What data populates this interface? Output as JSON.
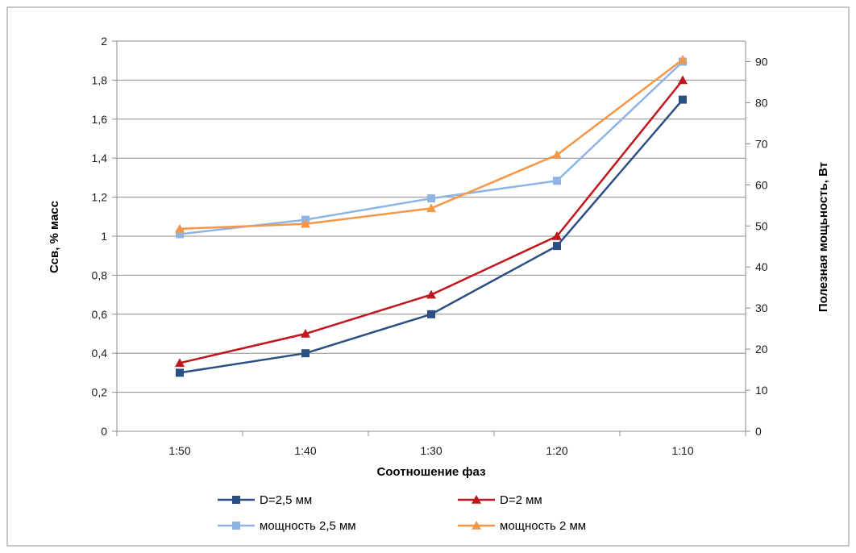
{
  "chart_data": {
    "type": "line",
    "title": "",
    "xlabel": "Соотношение фаз",
    "ylabel_left": "Ссв, % масс",
    "ylabel_right": "Полезная мощьность, Вт",
    "categories": [
      "1:50",
      "1:40",
      "1:30",
      "1:20",
      "1:10"
    ],
    "y_left": {
      "min": 0,
      "max": 2,
      "step": 0.2,
      "tick_labels": [
        "0",
        "0,2",
        "0,4",
        "0,6",
        "0,8",
        "1",
        "1,2",
        "1,4",
        "1,6",
        "1,8",
        "2"
      ]
    },
    "y_right": {
      "min": 0,
      "max": 95,
      "step": 10,
      "tick_labels": [
        "0",
        "10",
        "20",
        "30",
        "40",
        "50",
        "60",
        "70",
        "80",
        "90"
      ]
    },
    "grid": true,
    "legend_position": "bottom",
    "series": [
      {
        "name": "D=2,5 мм",
        "axis": "left",
        "marker": "square",
        "color": "#2b4f82",
        "values": [
          0.3,
          0.4,
          0.6,
          0.95,
          1.7
        ]
      },
      {
        "name": "D=2 мм",
        "axis": "left",
        "marker": "triangle",
        "color": "#c0161c",
        "values": [
          0.35,
          0.5,
          0.7,
          1.0,
          1.8
        ]
      },
      {
        "name": "мощность 2,5 мм",
        "axis": "right",
        "marker": "square",
        "color": "#8eb4e3",
        "values": [
          48.0,
          51.5,
          56.7,
          61.0,
          90.0
        ]
      },
      {
        "name": "мощность 2 мм",
        "axis": "right",
        "marker": "triangle",
        "color": "#f79646",
        "values": [
          49.3,
          50.5,
          54.3,
          67.3,
          90.5
        ]
      }
    ]
  }
}
